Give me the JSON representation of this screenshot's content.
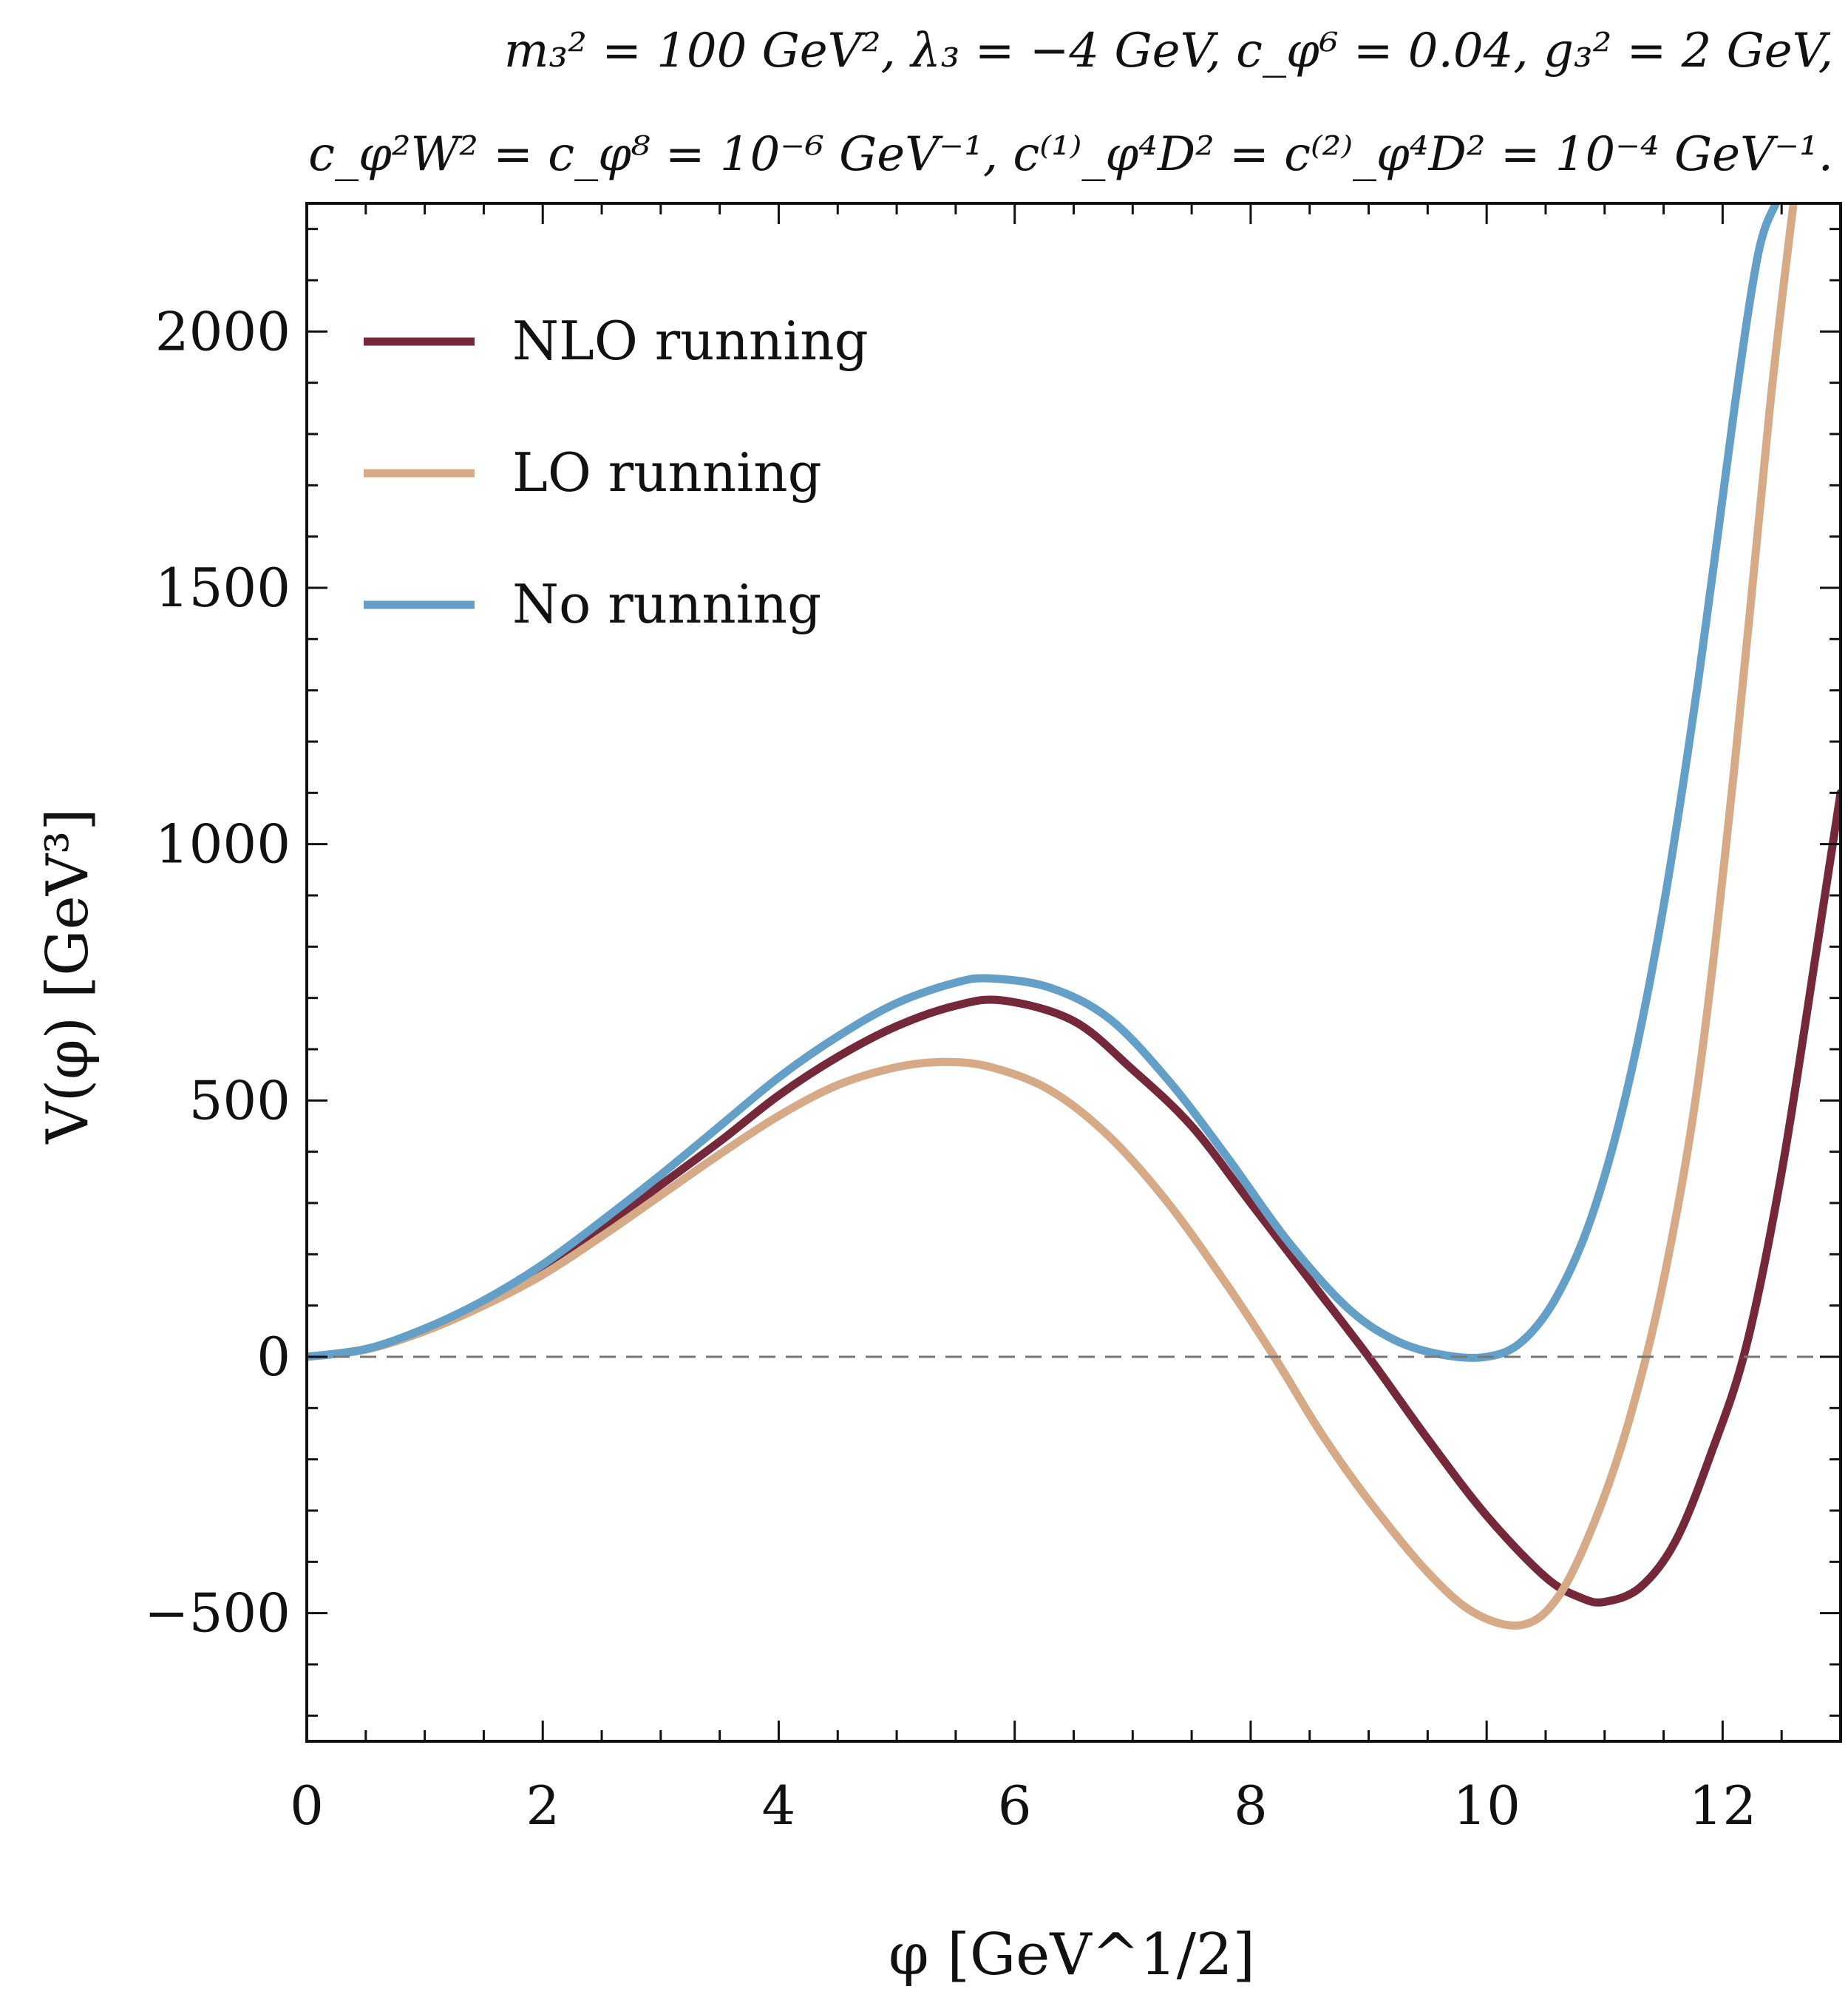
{
  "chart_data": {
    "type": "line",
    "title_lines": [
      "m₃² = 100 GeV², λ₃ = −4 GeV, c_φ⁶ = 0.04, g₃² = 2 GeV,",
      "c_φ²W² = c_φ⁸ = 10⁻⁶ GeV⁻¹, c⁽¹⁾_φ⁴D² = c⁽²⁾_φ⁴D² = 10⁻⁴ GeV⁻¹."
    ],
    "xlabel": "φ [GeV^1/2]",
    "ylabel": "V(φ) [GeV³]",
    "xlim": [
      0,
      13
    ],
    "ylim": [
      -750,
      2250
    ],
    "x_major_ticks": [
      0,
      2,
      4,
      6,
      8,
      10,
      12
    ],
    "x_tick_labels": [
      "0",
      "2",
      "4",
      "6",
      "8",
      "10",
      "12"
    ],
    "y_major_ticks": [
      -500,
      0,
      500,
      1000,
      1500,
      2000
    ],
    "y_tick_labels": [
      "−500",
      "0",
      "500",
      "1000",
      "1500",
      "2000"
    ],
    "x_minor_step": 0.5,
    "y_minor_step": 100,
    "reference_line": {
      "y": 0,
      "style": "dashed"
    },
    "legend_position": "top-left",
    "series": [
      {
        "name": "NLO running",
        "color": "#74283a",
        "x": [
          0,
          0.5,
          1,
          1.5,
          2,
          2.5,
          3,
          3.5,
          4,
          4.5,
          5,
          5.5,
          5.9,
          6.5,
          7,
          7.5,
          8,
          8.5,
          9,
          9.5,
          10,
          10.5,
          10.8,
          11,
          11.3,
          11.6,
          11.9,
          12.2,
          12.5,
          12.8,
          13
        ],
        "y": [
          0,
          15,
          52,
          105,
          170,
          250,
          335,
          420,
          510,
          585,
          645,
          685,
          695,
          655,
          560,
          450,
          300,
          150,
          0,
          -160,
          -310,
          -430,
          -470,
          -478,
          -450,
          -360,
          -190,
          20,
          360,
          800,
          1100
        ]
      },
      {
        "name": "LO running",
        "color": "#d7aa87",
        "x": [
          0,
          0.5,
          1,
          1.5,
          2,
          2.5,
          3,
          3.5,
          4,
          4.5,
          5,
          5.4,
          5.8,
          6.3,
          6.8,
          7.3,
          7.8,
          8.2,
          8.6,
          9,
          9.5,
          9.9,
          10.3,
          10.6,
          10.9,
          11.2,
          11.5,
          11.8,
          12.1,
          12.4,
          12.6
        ],
        "y": [
          0,
          14,
          50,
          100,
          160,
          235,
          315,
          395,
          470,
          530,
          565,
          575,
          565,
          520,
          430,
          300,
          140,
          0,
          -150,
          -280,
          -420,
          -500,
          -523,
          -470,
          -330,
          -130,
          150,
          550,
          1150,
          1850,
          2250
        ]
      },
      {
        "name": "No running",
        "color": "#649fc7",
        "x": [
          0,
          0.5,
          1,
          1.5,
          2,
          2.5,
          3,
          3.5,
          4,
          4.5,
          5,
          5.5,
          5.8,
          6.3,
          6.8,
          7.3,
          7.8,
          8.3,
          8.8,
          9.2,
          9.6,
          10,
          10.3,
          10.6,
          10.9,
          11.2,
          11.5,
          11.8,
          12.1,
          12.3,
          12.45
        ],
        "y": [
          0,
          15,
          55,
          110,
          180,
          265,
          355,
          450,
          545,
          625,
          690,
          730,
          738,
          720,
          660,
          540,
          390,
          230,
          100,
          35,
          5,
          0,
          30,
          120,
          280,
          530,
          880,
          1330,
          1850,
          2150,
          2250
        ]
      }
    ]
  }
}
